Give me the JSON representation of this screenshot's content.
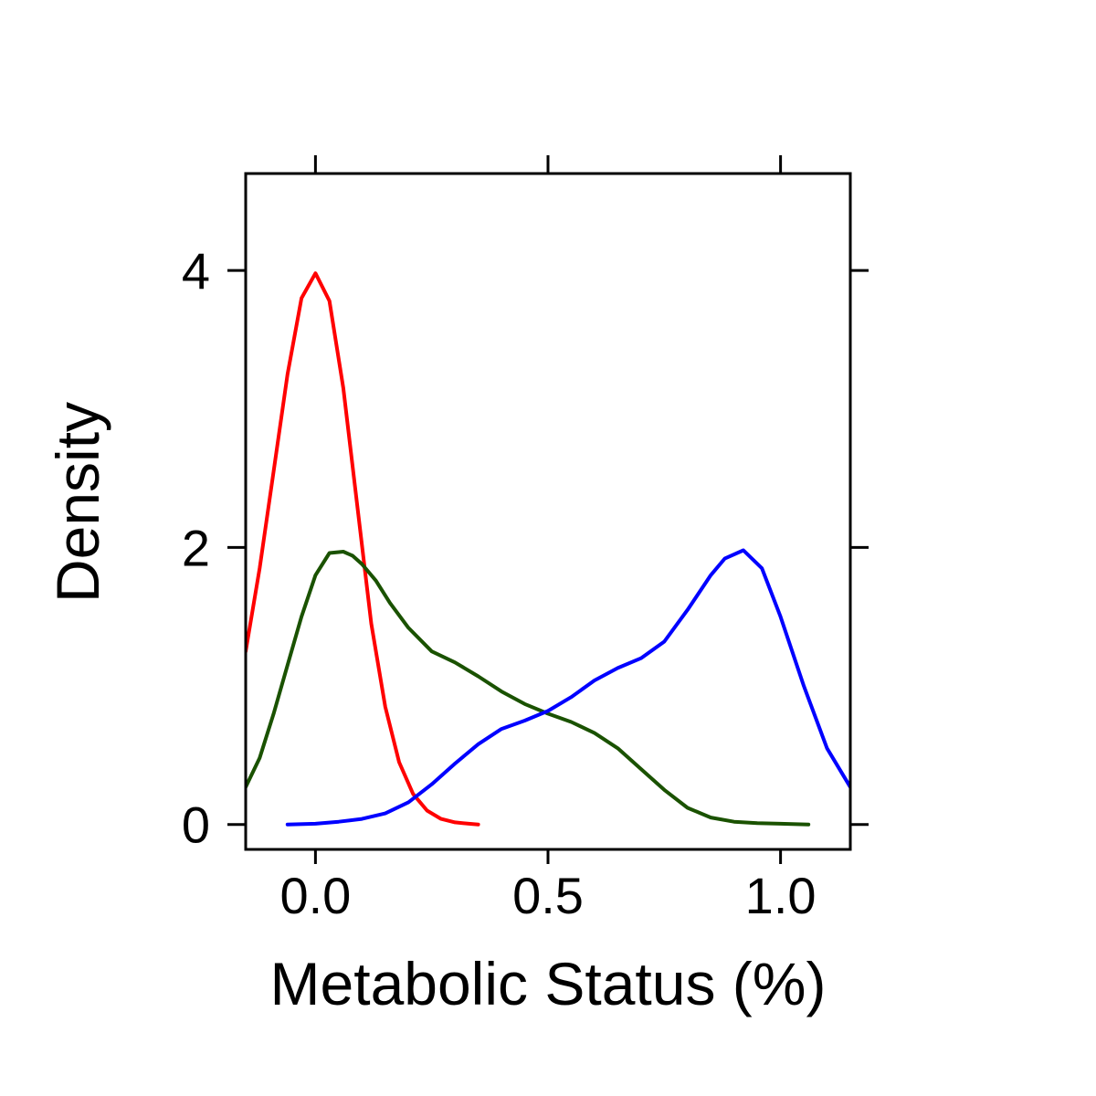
{
  "chart_data": {
    "type": "line",
    "title": "",
    "xlabel": "Metabolic Status (%)",
    "ylabel": "Density",
    "xlim": [
      -0.15,
      1.15
    ],
    "ylim": [
      -0.18,
      4.7
    ],
    "x_ticks": [
      0.0,
      0.5,
      1.0
    ],
    "x_tick_labels": [
      "0.0",
      "0.5",
      "1.0"
    ],
    "y_ticks": [
      0,
      2,
      4
    ],
    "y_tick_labels": [
      "0",
      "2",
      "4"
    ],
    "grid": false,
    "legend": "none",
    "series": [
      {
        "color": "#ff0000",
        "x": [
          -0.15,
          -0.12,
          -0.09,
          -0.06,
          -0.03,
          0.0,
          0.03,
          0.06,
          0.09,
          0.12,
          0.15,
          0.18,
          0.21,
          0.24,
          0.27,
          0.3,
          0.33,
          0.35
        ],
        "y": [
          1.25,
          1.85,
          2.55,
          3.25,
          3.8,
          3.98,
          3.78,
          3.15,
          2.3,
          1.45,
          0.85,
          0.45,
          0.22,
          0.1,
          0.04,
          0.015,
          0.005,
          0.0
        ]
      },
      {
        "color": "#1a5200",
        "x": [
          -0.15,
          -0.12,
          -0.09,
          -0.06,
          -0.03,
          0.0,
          0.03,
          0.06,
          0.08,
          0.1,
          0.13,
          0.16,
          0.2,
          0.25,
          0.3,
          0.35,
          0.4,
          0.45,
          0.5,
          0.55,
          0.6,
          0.65,
          0.7,
          0.75,
          0.8,
          0.85,
          0.9,
          0.95,
          1.0,
          1.06
        ],
        "y": [
          0.27,
          0.48,
          0.8,
          1.15,
          1.5,
          1.8,
          1.96,
          1.97,
          1.94,
          1.88,
          1.76,
          1.6,
          1.42,
          1.25,
          1.17,
          1.07,
          0.96,
          0.87,
          0.8,
          0.74,
          0.66,
          0.55,
          0.4,
          0.25,
          0.12,
          0.05,
          0.02,
          0.01,
          0.005,
          0.0
        ]
      },
      {
        "color": "#0000ff",
        "x": [
          -0.06,
          0.0,
          0.05,
          0.1,
          0.15,
          0.2,
          0.25,
          0.3,
          0.35,
          0.4,
          0.45,
          0.5,
          0.55,
          0.6,
          0.65,
          0.7,
          0.75,
          0.8,
          0.85,
          0.88,
          0.92,
          0.96,
          1.0,
          1.05,
          1.1,
          1.15
        ],
        "y": [
          0.0,
          0.005,
          0.02,
          0.04,
          0.08,
          0.16,
          0.29,
          0.44,
          0.58,
          0.69,
          0.75,
          0.82,
          0.92,
          1.04,
          1.13,
          1.2,
          1.32,
          1.55,
          1.8,
          1.92,
          1.98,
          1.85,
          1.5,
          1.0,
          0.55,
          0.27
        ]
      }
    ]
  }
}
